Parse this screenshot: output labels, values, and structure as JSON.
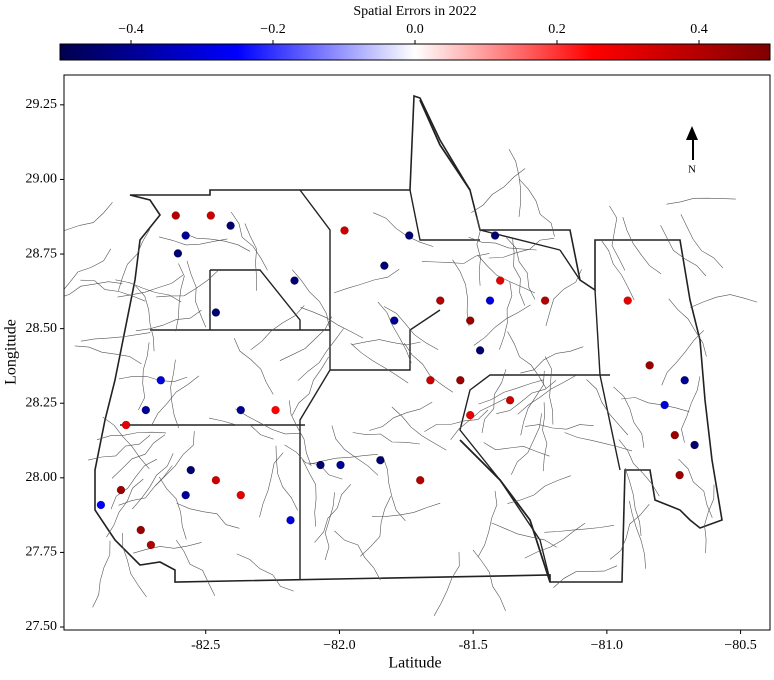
{
  "chart_data": {
    "type": "scatter",
    "title": "Spatial Errors in 2022",
    "x_label": "Latitude",
    "y_label": "Longitude",
    "north_label": "N",
    "colormap": [
      "#00004c",
      "#0000ff",
      "#ffffff",
      "#ff0000",
      "#800000"
    ],
    "clim": [
      -0.5,
      0.5
    ],
    "cticks": [
      {
        "value": -0.4,
        "label": "−0.4"
      },
      {
        "value": -0.2,
        "label": "−0.2"
      },
      {
        "value": 0,
        "label": "0.0"
      },
      0.2,
      0.4
    ],
    "xlim": [
      -83.03,
      -80.39
    ],
    "ylim": [
      27.49,
      29.35
    ],
    "xticks": [
      -82.5,
      {
        "value": -82.0,
        "label": "−82.0"
      },
      -81.5,
      {
        "value": -81.0,
        "label": "−81.0"
      },
      {
        "value": -80.5,
        "label": "−80.5"
      }
    ],
    "yticks": [
      29.25,
      {
        "value": 29.0,
        "label": "29.00"
      },
      28.75,
      {
        "value": 28.5,
        "label": "28.50"
      },
      28.25,
      {
        "value": 28.0,
        "label": "28.00"
      },
      27.75,
      {
        "value": 27.5,
        "label": "27.50"
      }
    ],
    "x": [
      -82.612,
      -82.481,
      -82.407,
      -82.575,
      -82.604,
      -82.462,
      -82.668,
      -82.724,
      -82.798,
      -82.817,
      -82.743,
      -82.705,
      -82.892,
      -82.556,
      -82.575,
      -82.462,
      -82.369,
      -82.183,
      -82.239,
      -82.369,
      -82.071,
      -81.996,
      -81.847,
      -81.698,
      -82.168,
      -81.981,
      -81.832,
      -81.739,
      -81.795,
      -81.623,
      -81.511,
      -81.437,
      -81.474,
      -81.399,
      -81.548,
      -81.362,
      -81.418,
      -81.231,
      -81.66,
      -81.511,
      -80.922,
      -80.84,
      -80.784,
      -80.746,
      -80.672,
      -80.728,
      -80.709
    ],
    "y": [
      28.879,
      28.879,
      28.845,
      28.812,
      28.752,
      28.554,
      28.327,
      28.227,
      28.177,
      27.959,
      27.825,
      27.775,
      27.909,
      28.026,
      27.942,
      27.992,
      27.942,
      27.858,
      28.227,
      28.227,
      28.043,
      28.043,
      28.059,
      27.992,
      28.661,
      28.829,
      28.711,
      28.812,
      28.527,
      28.594,
      28.527,
      28.594,
      28.427,
      28.661,
      28.327,
      28.26,
      28.812,
      28.594,
      28.327,
      28.21,
      28.594,
      28.377,
      28.244,
      28.143,
      28.11,
      28.009,
      28.327
    ],
    "values": [
      0.4,
      0.35,
      -0.45,
      -0.4,
      -0.45,
      -0.45,
      -0.3,
      -0.4,
      0.3,
      0.45,
      0.45,
      0.4,
      -0.25,
      -0.45,
      -0.4,
      0.35,
      0.3,
      -0.3,
      0.25,
      -0.4,
      -0.45,
      -0.4,
      -0.45,
      0.4,
      -0.45,
      0.35,
      -0.45,
      -0.45,
      -0.4,
      0.4,
      0.45,
      -0.3,
      -0.45,
      0.3,
      0.45,
      0.35,
      -0.45,
      0.4,
      0.35,
      0.3,
      0.3,
      0.45,
      -0.3,
      0.45,
      -0.45,
      0.45,
      -0.4
    ]
  }
}
